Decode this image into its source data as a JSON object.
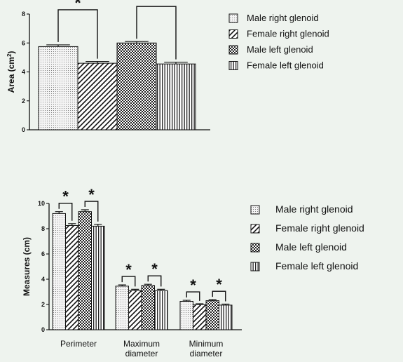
{
  "chart_data": [
    {
      "type": "bar",
      "ylabel": "Area (cm²)",
      "ylabel_main": "Area (cm",
      "ylabel_sup": "2",
      "ylabel_end": ")",
      "ylim": [
        0,
        8
      ],
      "yticks": [
        0,
        2,
        4,
        6,
        8
      ],
      "categories": [
        ""
      ],
      "series": [
        {
          "name": "Male right glenoid",
          "values": [
            5.75
          ],
          "errors": [
            0.12
          ],
          "pattern": "dots"
        },
        {
          "name": "Female right glenoid",
          "values": [
            4.6
          ],
          "errors": [
            0.12
          ],
          "pattern": "diag"
        },
        {
          "name": "Male left glenoid",
          "values": [
            6.0
          ],
          "errors": [
            0.1
          ],
          "pattern": "check"
        },
        {
          "name": "Female left glenoid",
          "values": [
            4.55
          ],
          "errors": [
            0.12
          ],
          "pattern": "vert"
        }
      ],
      "significance": [
        {
          "category": 0,
          "from": 0,
          "to": 1,
          "label": "*"
        },
        {
          "category": 0,
          "from": 2,
          "to": 3,
          "label": "*"
        }
      ],
      "legend": "right",
      "grid": false
    },
    {
      "type": "bar",
      "ylabel": "Measures (cm)",
      "ylim": [
        0,
        10
      ],
      "yticks": [
        0,
        2,
        4,
        6,
        8,
        10
      ],
      "categories": [
        [
          "Perimeter"
        ],
        [
          "Maximum",
          "diameter"
        ],
        [
          "Minimum",
          "diameter"
        ]
      ],
      "series": [
        {
          "name": "Male right glenoid",
          "values": [
            9.2,
            3.45,
            2.25
          ],
          "errors": [
            0.15,
            0.1,
            0.08
          ],
          "pattern": "dots"
        },
        {
          "name": "Female right glenoid",
          "values": [
            8.25,
            3.1,
            1.98
          ],
          "errors": [
            0.15,
            0.1,
            0.08
          ],
          "pattern": "diag"
        },
        {
          "name": "Male left glenoid",
          "values": [
            9.35,
            3.5,
            2.3
          ],
          "errors": [
            0.15,
            0.1,
            0.08
          ],
          "pattern": "check"
        },
        {
          "name": "Female left glenoid",
          "values": [
            8.2,
            3.1,
            1.95
          ],
          "errors": [
            0.15,
            0.1,
            0.08
          ],
          "pattern": "vert"
        }
      ],
      "significance": [
        {
          "category": 0,
          "from": 0,
          "to": 1,
          "label": "*"
        },
        {
          "category": 0,
          "from": 2,
          "to": 3,
          "label": "*"
        },
        {
          "category": 1,
          "from": 0,
          "to": 1,
          "label": "*"
        },
        {
          "category": 1,
          "from": 2,
          "to": 3,
          "label": "*"
        },
        {
          "category": 2,
          "from": 0,
          "to": 1,
          "label": "*"
        },
        {
          "category": 2,
          "from": 2,
          "to": 3,
          "label": "*"
        }
      ],
      "legend": "right",
      "grid": false
    }
  ]
}
